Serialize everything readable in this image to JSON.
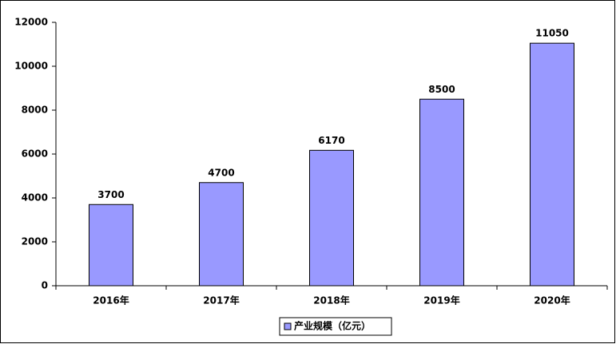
{
  "chart_data": {
    "type": "bar",
    "categories": [
      "2016年",
      "2017年",
      "2018年",
      "2019年",
      "2020年"
    ],
    "series": [
      {
        "name": "产业规模（亿元）",
        "color": "#9999ff",
        "values": [
          3700,
          4700,
          6170,
          8500,
          11050
        ]
      }
    ],
    "ylim": [
      0,
      12000
    ],
    "yticks": [
      0,
      2000,
      4000,
      6000,
      8000,
      10000,
      12000
    ],
    "grid": false,
    "legend": "bottom",
    "data_labels": true
  }
}
